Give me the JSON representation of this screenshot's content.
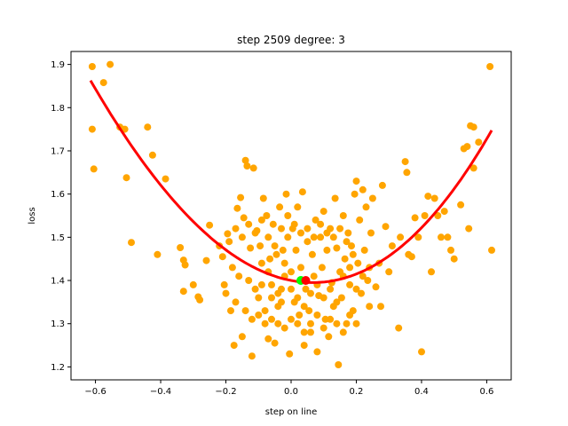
{
  "chart_data": {
    "type": "scatter",
    "title": "step 2509   degree: 3",
    "xlabel": "step on line",
    "ylabel": "loss",
    "xlim": [
      -0.675,
      0.675
    ],
    "ylim": [
      1.17,
      1.93
    ],
    "xticks": [
      -0.6,
      -0.4,
      -0.2,
      0.0,
      0.2,
      0.4,
      0.6
    ],
    "xtick_labels": [
      "−0.6",
      "−0.4",
      "−0.2",
      "0.0",
      "0.2",
      "0.4",
      "0.6"
    ],
    "yticks": [
      1.2,
      1.3,
      1.4,
      1.5,
      1.6,
      1.7,
      1.8,
      1.9
    ],
    "ytick_labels": [
      "1.2",
      "1.3",
      "1.4",
      "1.5",
      "1.6",
      "1.7",
      "1.8",
      "1.9"
    ],
    "grid": false,
    "colors": {
      "points": "#ffa500",
      "fit_curve": "#ff0000",
      "current_marker": "#00ff00",
      "minimum_marker": "#ff0000"
    },
    "fit_curve": {
      "kind": "polynomial",
      "degree": 3,
      "x_range": [
        -0.615,
        0.615
      ],
      "coefficients": [
        1.4,
        -0.145,
        1.071,
        0.135
      ]
    },
    "current_point": {
      "x": 0.03,
      "y": 1.4
    },
    "minimum_point": {
      "x": 0.045,
      "y": 1.4
    },
    "points": [
      [
        -0.61,
        1.895
      ],
      [
        -0.575,
        1.858
      ],
      [
        -0.555,
        1.9
      ],
      [
        -0.61,
        1.75
      ],
      [
        -0.605,
        1.658
      ],
      [
        -0.525,
        1.755
      ],
      [
        -0.51,
        1.75
      ],
      [
        -0.505,
        1.638
      ],
      [
        -0.49,
        1.488
      ],
      [
        -0.44,
        1.755
      ],
      [
        -0.425,
        1.69
      ],
      [
        -0.41,
        1.46
      ],
      [
        -0.385,
        1.635
      ],
      [
        -0.34,
        1.476
      ],
      [
        -0.33,
        1.447
      ],
      [
        -0.325,
        1.436
      ],
      [
        -0.33,
        1.375
      ],
      [
        -0.3,
        1.39
      ],
      [
        -0.285,
        1.362
      ],
      [
        -0.28,
        1.355
      ],
      [
        -0.26,
        1.446
      ],
      [
        -0.25,
        1.528
      ],
      [
        -0.22,
        1.48
      ],
      [
        -0.21,
        1.455
      ],
      [
        -0.205,
        1.39
      ],
      [
        -0.195,
        1.508
      ],
      [
        -0.185,
        1.33
      ],
      [
        -0.175,
        1.25
      ],
      [
        -0.165,
        1.567
      ],
      [
        -0.155,
        1.592
      ],
      [
        -0.15,
        1.27
      ],
      [
        -0.145,
        1.545
      ],
      [
        -0.14,
        1.678
      ],
      [
        -0.135,
        1.665
      ],
      [
        -0.125,
        1.475
      ],
      [
        -0.12,
        1.225
      ],
      [
        -0.115,
        1.66
      ],
      [
        -0.105,
        1.515
      ],
      [
        -0.095,
        1.48
      ],
      [
        -0.09,
        1.39
      ],
      [
        -0.085,
        1.59
      ],
      [
        -0.08,
        1.3
      ],
      [
        -0.075,
        1.55
      ],
      [
        -0.07,
        1.265
      ],
      [
        -0.065,
        1.45
      ],
      [
        -0.06,
        1.36
      ],
      [
        -0.055,
        1.53
      ],
      [
        -0.05,
        1.255
      ],
      [
        -0.045,
        1.46
      ],
      [
        -0.04,
        1.34
      ],
      [
        -0.035,
        1.57
      ],
      [
        -0.03,
        1.38
      ],
      [
        -0.025,
        1.47
      ],
      [
        -0.02,
        1.44
      ],
      [
        -0.015,
        1.6
      ],
      [
        -0.01,
        1.5
      ],
      [
        -0.005,
        1.23
      ],
      [
        0.0,
        1.42
      ],
      [
        0.005,
        1.52
      ],
      [
        0.01,
        1.35
      ],
      [
        0.015,
        1.47
      ],
      [
        0.02,
        1.57
      ],
      [
        0.025,
        1.32
      ],
      [
        0.03,
        1.43
      ],
      [
        0.035,
        1.605
      ],
      [
        0.04,
        1.25
      ],
      [
        0.045,
        1.38
      ],
      [
        0.05,
        1.49
      ],
      [
        0.055,
        1.33
      ],
      [
        0.06,
        1.28
      ],
      [
        0.065,
        1.46
      ],
      [
        0.07,
        1.41
      ],
      [
        0.075,
        1.54
      ],
      [
        0.08,
        1.235
      ],
      [
        0.085,
        1.365
      ],
      [
        0.09,
        1.5
      ],
      [
        0.095,
        1.43
      ],
      [
        0.1,
        1.56
      ],
      [
        0.105,
        1.31
      ],
      [
        0.11,
        1.47
      ],
      [
        0.115,
        1.27
      ],
      [
        0.12,
        1.52
      ],
      [
        0.125,
        1.395
      ],
      [
        0.13,
        1.34
      ],
      [
        0.135,
        1.59
      ],
      [
        0.14,
        1.475
      ],
      [
        0.145,
        1.205
      ],
      [
        0.15,
        1.42
      ],
      [
        0.155,
        1.36
      ],
      [
        0.16,
        1.55
      ],
      [
        0.165,
        1.45
      ],
      [
        0.17,
        1.3
      ],
      [
        0.175,
        1.51
      ],
      [
        0.18,
        1.39
      ],
      [
        0.185,
        1.48
      ],
      [
        0.19,
        1.33
      ],
      [
        0.195,
        1.6
      ],
      [
        0.2,
        1.63
      ],
      [
        0.205,
        1.44
      ],
      [
        0.21,
        1.54
      ],
      [
        0.215,
        1.37
      ],
      [
        0.22,
        1.61
      ],
      [
        0.225,
        1.47
      ],
      [
        0.23,
        1.57
      ],
      [
        0.235,
        1.4
      ],
      [
        0.24,
        1.34
      ],
      [
        0.245,
        1.51
      ],
      [
        0.25,
        1.59
      ],
      [
        0.26,
        1.385
      ],
      [
        0.27,
        1.44
      ],
      [
        0.275,
        1.34
      ],
      [
        0.28,
        1.62
      ],
      [
        0.29,
        1.525
      ],
      [
        0.3,
        1.42
      ],
      [
        0.31,
        1.48
      ],
      [
        0.33,
        1.29
      ],
      [
        0.335,
        1.5
      ],
      [
        0.35,
        1.675
      ],
      [
        0.355,
        1.65
      ],
      [
        0.36,
        1.46
      ],
      [
        0.37,
        1.455
      ],
      [
        0.38,
        1.545
      ],
      [
        0.39,
        1.5
      ],
      [
        0.4,
        1.235
      ],
      [
        0.41,
        1.55
      ],
      [
        0.42,
        1.595
      ],
      [
        0.43,
        1.42
      ],
      [
        0.44,
        1.59
      ],
      [
        0.45,
        1.55
      ],
      [
        0.46,
        1.5
      ],
      [
        0.47,
        1.56
      ],
      [
        0.48,
        1.5
      ],
      [
        0.49,
        1.47
      ],
      [
        0.5,
        1.45
      ],
      [
        0.52,
        1.575
      ],
      [
        0.53,
        1.705
      ],
      [
        0.54,
        1.71
      ],
      [
        0.545,
        1.52
      ],
      [
        0.55,
        1.758
      ],
      [
        0.56,
        1.755
      ],
      [
        0.56,
        1.66
      ],
      [
        0.575,
        1.72
      ],
      [
        0.61,
        1.895
      ],
      [
        0.615,
        1.47
      ],
      [
        -0.18,
        1.43
      ],
      [
        -0.16,
        1.41
      ],
      [
        -0.13,
        1.4
      ],
      [
        -0.11,
        1.38
      ],
      [
        -0.1,
        1.36
      ],
      [
        -0.09,
        1.44
      ],
      [
        -0.07,
        1.42
      ],
      [
        -0.06,
        1.39
      ],
      [
        -0.04,
        1.37
      ],
      [
        -0.03,
        1.35
      ],
      [
        -0.02,
        1.41
      ],
      [
        0.0,
        1.38
      ],
      [
        0.02,
        1.36
      ],
      [
        0.04,
        1.34
      ],
      [
        0.06,
        1.37
      ],
      [
        0.08,
        1.39
      ],
      [
        0.1,
        1.36
      ],
      [
        0.12,
        1.38
      ],
      [
        0.14,
        1.35
      ],
      [
        0.16,
        1.41
      ],
      [
        0.18,
        1.43
      ],
      [
        0.2,
        1.38
      ],
      [
        0.22,
        1.41
      ],
      [
        0.24,
        1.43
      ],
      [
        -0.2,
        1.37
      ],
      [
        -0.17,
        1.35
      ],
      [
        -0.14,
        1.33
      ],
      [
        -0.12,
        1.31
      ],
      [
        -0.1,
        1.32
      ],
      [
        -0.08,
        1.33
      ],
      [
        -0.06,
        1.31
      ],
      [
        -0.04,
        1.3
      ],
      [
        -0.02,
        1.29
      ],
      [
        0.0,
        1.31
      ],
      [
        0.02,
        1.3
      ],
      [
        0.04,
        1.28
      ],
      [
        0.06,
        1.3
      ],
      [
        0.08,
        1.32
      ],
      [
        0.1,
        1.29
      ],
      [
        0.12,
        1.31
      ],
      [
        0.14,
        1.3
      ],
      [
        0.16,
        1.28
      ],
      [
        0.18,
        1.32
      ],
      [
        0.2,
        1.3
      ],
      [
        -0.19,
        1.49
      ],
      [
        -0.17,
        1.52
      ],
      [
        -0.15,
        1.5
      ],
      [
        -0.13,
        1.53
      ],
      [
        -0.11,
        1.51
      ],
      [
        -0.09,
        1.54
      ],
      [
        -0.07,
        1.5
      ],
      [
        -0.05,
        1.48
      ],
      [
        -0.03,
        1.52
      ],
      [
        -0.01,
        1.55
      ],
      [
        0.01,
        1.53
      ],
      [
        0.03,
        1.51
      ],
      [
        0.05,
        1.52
      ],
      [
        0.07,
        1.5
      ],
      [
        0.09,
        1.53
      ],
      [
        0.11,
        1.51
      ],
      [
        0.13,
        1.5
      ],
      [
        0.15,
        1.52
      ],
      [
        0.17,
        1.49
      ],
      [
        0.19,
        1.46
      ]
    ]
  }
}
